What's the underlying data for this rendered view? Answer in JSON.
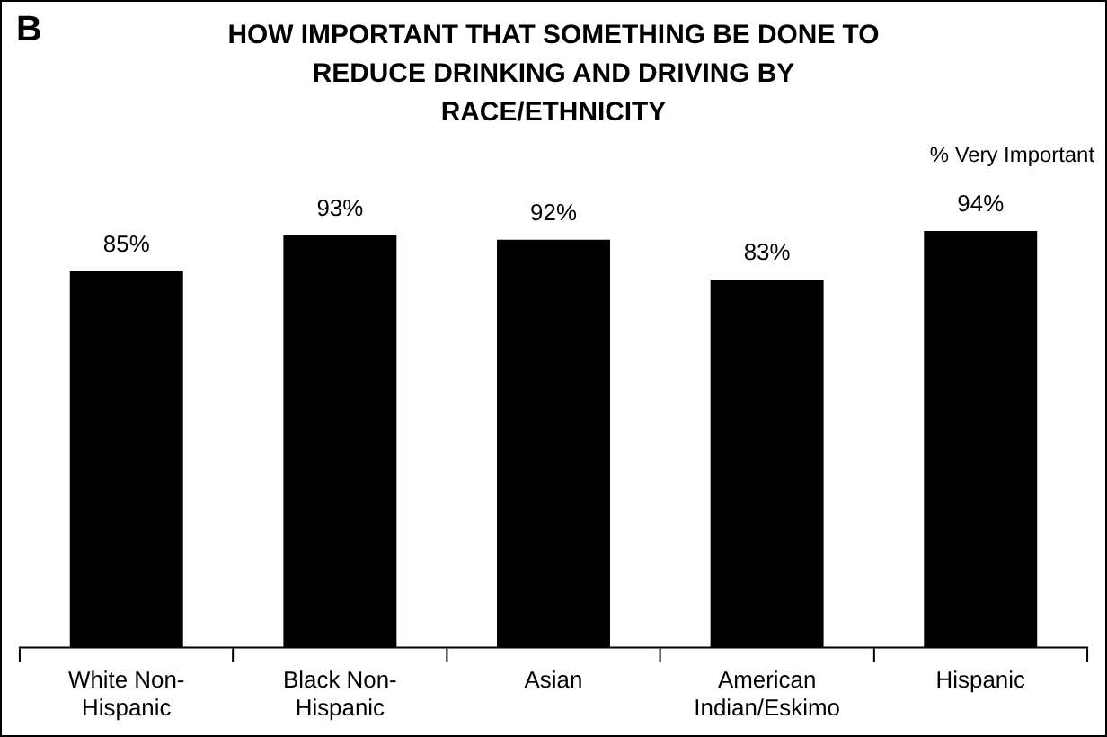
{
  "chart_data": {
    "type": "bar",
    "title": "HOW IMPORTANT THAT SOMETHING BE DONE TO\nREDUCE DRINKING AND DRIVING BY\nRACE/ETHNICITY",
    "categories": [
      "White Non-Hispanic",
      "Black Non-Hispanic",
      "Asian",
      "American Indian/Eskimo",
      "Hispanic"
    ],
    "values": [
      85,
      93,
      92,
      83,
      94
    ],
    "value_labels": [
      "85%",
      "93%",
      "92%",
      "83%",
      "94%"
    ],
    "color": "#000000",
    "grid": false,
    "legend": false,
    "annotations": [
      "B",
      "% Very Important"
    ]
  }
}
